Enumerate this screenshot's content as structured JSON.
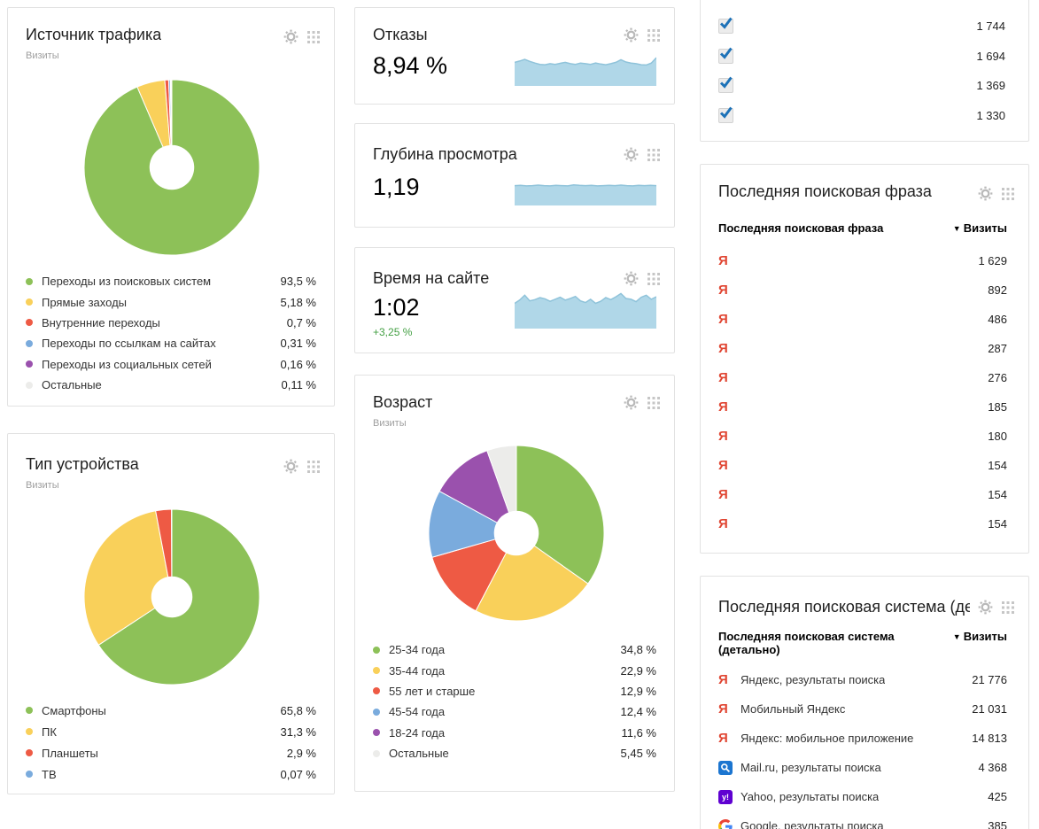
{
  "ui": {
    "sort_arrow": "▼"
  },
  "icons": {
    "yandex_char": "Я",
    "yahoo_char": "y!"
  },
  "colors": {
    "green": "#8dc158",
    "yellow": "#f9d05a",
    "red": "#ee5a44",
    "blue": "#7aabdd",
    "purple": "#9a51ad",
    "gray": "#ececea",
    "spark_fill": "#b0d7e8",
    "spark_line": "#8fc3da",
    "positive": "#44a044",
    "yandex_red": "#e04532",
    "checkbox_blue": "#1d72b8",
    "mailru_blue": "#1b75d0",
    "yahoo_purple": "#5f01d1"
  },
  "traffic_source": {
    "title": "Источник трафика",
    "subtitle": "Визиты",
    "legend": [
      {
        "label": "Переходы из поисковых систем",
        "value": "93,5 %",
        "color": "#8dc158"
      },
      {
        "label": "Прямые заходы",
        "value": "5,18 %",
        "color": "#f9d05a"
      },
      {
        "label": "Внутренние переходы",
        "value": "0,7 %",
        "color": "#ee5a44"
      },
      {
        "label": "Переходы по ссылкам на сайтах",
        "value": "0,31 %",
        "color": "#7aabdd"
      },
      {
        "label": "Переходы из социальных сетей",
        "value": "0,16 %",
        "color": "#9a51ad"
      },
      {
        "label": "Остальные",
        "value": "0,11 %",
        "color": "#ececea"
      }
    ]
  },
  "device_type": {
    "title": "Тип устройства",
    "subtitle": "Визиты",
    "legend": [
      {
        "label": "Смартфоны",
        "value": "65,8 %",
        "color": "#8dc158"
      },
      {
        "label": "ПК",
        "value": "31,3 %",
        "color": "#f9d05a"
      },
      {
        "label": "Планшеты",
        "value": "2,9 %",
        "color": "#ee5a44"
      },
      {
        "label": "ТВ",
        "value": "0,07 %",
        "color": "#7aabdd"
      }
    ]
  },
  "age": {
    "title": "Возраст",
    "subtitle": "Визиты",
    "legend": [
      {
        "label": "25-34 года",
        "value": "34,8 %",
        "color": "#8dc158"
      },
      {
        "label": "35-44 года",
        "value": "22,9 %",
        "color": "#f9d05a"
      },
      {
        "label": "55 лет и старше",
        "value": "12,9 %",
        "color": "#ee5a44"
      },
      {
        "label": "45-54 года",
        "value": "12,4 %",
        "color": "#7aabdd"
      },
      {
        "label": "18-24 года",
        "value": "11,6 %",
        "color": "#9a51ad"
      },
      {
        "label": "Остальные",
        "value": "5,45 %",
        "color": "#ececea"
      }
    ]
  },
  "bounces": {
    "title": "Отказы",
    "value": "8,94 %"
  },
  "depth": {
    "title": "Глубина просмотра",
    "value": "1,19"
  },
  "time_on_site": {
    "title": "Время на сайте",
    "value": "1:02",
    "delta": "+3,25 %"
  },
  "checks_widget": {
    "rows": [
      {
        "value": "1 744"
      },
      {
        "value": "1 694"
      },
      {
        "value": "1 369"
      },
      {
        "value": "1 330"
      }
    ]
  },
  "search_phrase": {
    "title": "Последняя поисковая фраза",
    "col_label": "Последняя поисковая фраза",
    "col_value": "Визиты",
    "rows": [
      {
        "icon": "yandex-icon",
        "value": "1 629"
      },
      {
        "icon": "yandex-icon",
        "value": "892"
      },
      {
        "icon": "yandex-icon",
        "value": "486"
      },
      {
        "icon": "yandex-icon",
        "value": "287"
      },
      {
        "icon": "yandex-icon",
        "value": "276"
      },
      {
        "icon": "yandex-icon",
        "value": "185"
      },
      {
        "icon": "yandex-icon",
        "value": "180"
      },
      {
        "icon": "yandex-icon",
        "value": "154"
      },
      {
        "icon": "yandex-icon",
        "value": "154"
      },
      {
        "icon": "yandex-icon",
        "value": "154"
      }
    ]
  },
  "search_engine": {
    "title": "Последняя поисковая система (де…",
    "col_label": "Последняя поисковая система (детально)",
    "col_value": "Визиты",
    "rows": [
      {
        "icon": "yandex-icon",
        "label": "Яндекс, результаты поиска",
        "value": "21 776"
      },
      {
        "icon": "yandex-icon",
        "label": "Мобильный Яндекс",
        "value": "21 031"
      },
      {
        "icon": "yandex-icon",
        "label": "Яндекс: мобильное приложение",
        "value": "14 813"
      },
      {
        "icon": "mailru-icon",
        "label": "Mail.ru, результаты поиска",
        "value": "4 368"
      },
      {
        "icon": "yahoo-icon",
        "label": "Yahoo, результаты поиска",
        "value": "425"
      },
      {
        "icon": "google-icon",
        "label": "Google, результаты поиска",
        "value": "385"
      }
    ]
  },
  "chart_data": [
    {
      "type": "pie",
      "title": "Источник трафика",
      "labels": [
        "Переходы из поисковых систем",
        "Прямые заходы",
        "Внутренние переходы",
        "Переходы по ссылкам на сайтах",
        "Переходы из социальных сетей",
        "Остальные"
      ],
      "values": [
        93.5,
        5.18,
        0.7,
        0.31,
        0.16,
        0.11
      ],
      "colors": [
        "#8dc158",
        "#f9d05a",
        "#ee5a44",
        "#7aabdd",
        "#9a51ad",
        "#ececea"
      ],
      "donut_ratio": 0.25,
      "legend_position": "bottom"
    },
    {
      "type": "pie",
      "title": "Тип устройства",
      "labels": [
        "Смартфоны",
        "ПК",
        "Планшеты",
        "ТВ"
      ],
      "values": [
        65.8,
        31.3,
        2.9,
        0.07
      ],
      "colors": [
        "#8dc158",
        "#f9d05a",
        "#ee5a44",
        "#7aabdd"
      ],
      "donut_ratio": 0.23,
      "legend_position": "bottom"
    },
    {
      "type": "pie",
      "title": "Возраст",
      "labels": [
        "25-34 года",
        "35-44 года",
        "55 лет и старше",
        "45-54 года",
        "18-24 года",
        "Остальные"
      ],
      "values": [
        34.8,
        22.9,
        12.9,
        12.4,
        11.6,
        5.45
      ],
      "colors": [
        "#8dc158",
        "#f9d05a",
        "#ee5a44",
        "#7aabdd",
        "#9a51ad",
        "#ececea"
      ],
      "donut_ratio": 0.25,
      "legend_position": "bottom"
    },
    {
      "type": "area",
      "title": "Отказы",
      "values": [
        0.7,
        0.74,
        0.79,
        0.73,
        0.68,
        0.64,
        0.63,
        0.66,
        0.64,
        0.67,
        0.7,
        0.66,
        0.64,
        0.68,
        0.66,
        0.64,
        0.68,
        0.65,
        0.63,
        0.66,
        0.7,
        0.78,
        0.71,
        0.68,
        0.66,
        0.63,
        0.62,
        0.68,
        0.84
      ]
    },
    {
      "type": "area",
      "title": "Глубина просмотра",
      "values": [
        0.8,
        0.81,
        0.79,
        0.8,
        0.82,
        0.8,
        0.79,
        0.81,
        0.8,
        0.79,
        0.83,
        0.81,
        0.8,
        0.81,
        0.79,
        0.8,
        0.81,
        0.8,
        0.82,
        0.8,
        0.79,
        0.81,
        0.8,
        0.81,
        0.8
      ]
    },
    {
      "type": "area",
      "title": "Время на сайте",
      "values": [
        0.62,
        0.7,
        0.82,
        0.68,
        0.71,
        0.76,
        0.73,
        0.67,
        0.72,
        0.77,
        0.7,
        0.74,
        0.79,
        0.68,
        0.64,
        0.72,
        0.62,
        0.67,
        0.76,
        0.71,
        0.78,
        0.86,
        0.74,
        0.72,
        0.66,
        0.77,
        0.82,
        0.72,
        0.78
      ]
    }
  ]
}
